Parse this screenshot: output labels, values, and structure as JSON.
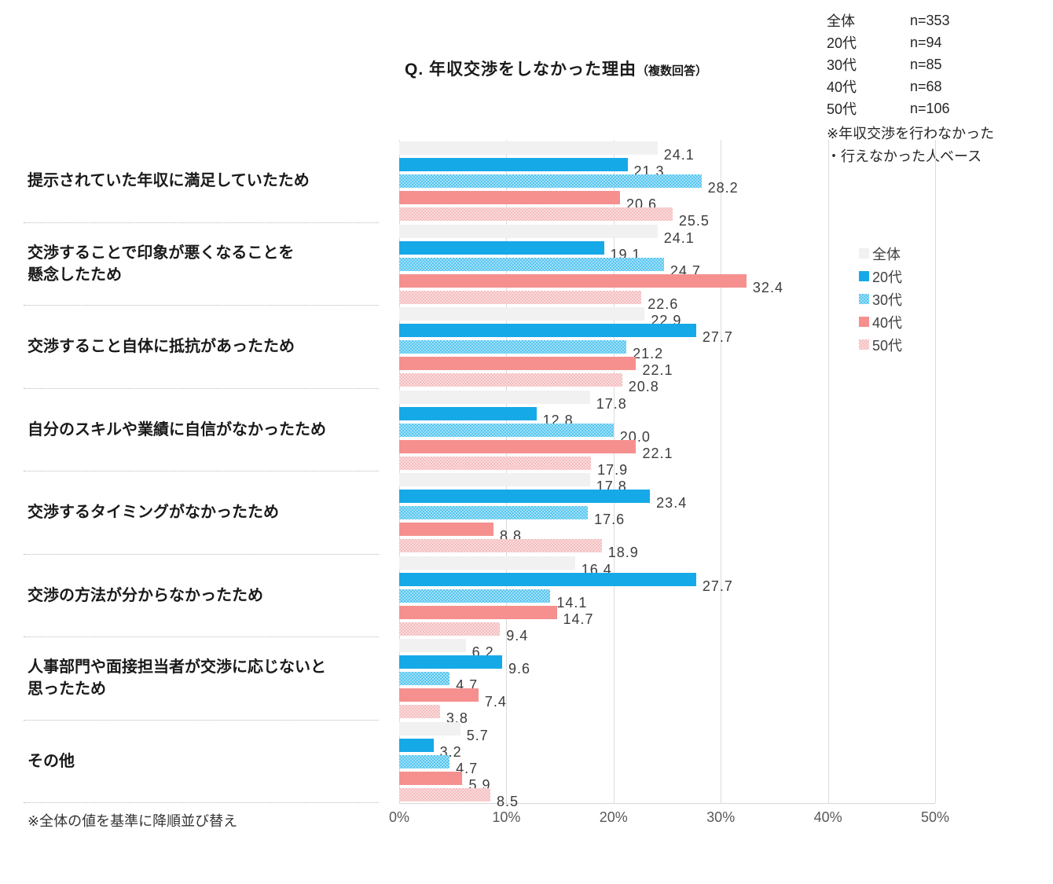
{
  "title": {
    "main": "Q. 年収交渉をしなかった理由",
    "sub": "（複数回答）"
  },
  "sample_sizes": {
    "rows": [
      {
        "label": "全体",
        "n": "n=353"
      },
      {
        "label": "20代",
        "n": "n=94"
      },
      {
        "label": "30代",
        "n": "n=85"
      },
      {
        "label": "40代",
        "n": "n=68"
      },
      {
        "label": "50代",
        "n": "n=106"
      }
    ]
  },
  "base_note": {
    "line1": "※年収交渉を行わなかった",
    "line2": "・行えなかった人ベース"
  },
  "footer_note": "※全体の値を基準に降順並び替え",
  "colors": {
    "zentai": "#f1f1f1",
    "s20": "#16a9e8",
    "s30": "#55c6f1",
    "s40": "#f5908f",
    "s50": "#f5bec0",
    "gridline": "#dcdcdc",
    "value_label": "#3c3c3c"
  },
  "chart_data": {
    "type": "bar",
    "orientation": "horizontal",
    "title": "Q. 年収交渉をしなかった理由（複数回答）",
    "xlim": [
      0,
      50
    ],
    "x_ticks": [
      "0%",
      "10%",
      "20%",
      "30%",
      "40%",
      "50%"
    ],
    "grid": true,
    "legend_position": "right",
    "value_labels": true,
    "categories": [
      "提示されていた年収に満足していたため",
      "交渉することで印象が悪くなることを\n懸念したため",
      "交渉すること自体に抵抗があったため",
      "自分のスキルや業績に自信がなかったため",
      "交渉するタイミングがなかったため",
      "交渉の方法が分からなかったため",
      "人事部門や面接担当者が交渉に応じないと\n思ったため",
      "その他"
    ],
    "series": [
      {
        "name": "全体",
        "color": "#f1f1f1",
        "pattern": false,
        "values": [
          24.1,
          24.1,
          22.9,
          17.8,
          17.8,
          16.4,
          6.2,
          5.7
        ]
      },
      {
        "name": "20代",
        "color": "#16a9e8",
        "pattern": false,
        "values": [
          21.3,
          19.1,
          27.7,
          12.8,
          23.4,
          27.7,
          9.6,
          3.2
        ]
      },
      {
        "name": "30代",
        "color": "#55c6f1",
        "pattern": true,
        "values": [
          28.2,
          24.7,
          21.2,
          20.0,
          17.6,
          14.1,
          4.7,
          4.7
        ]
      },
      {
        "name": "40代",
        "color": "#f5908f",
        "pattern": false,
        "values": [
          20.6,
          32.4,
          22.1,
          22.1,
          8.8,
          14.7,
          7.4,
          5.9
        ]
      },
      {
        "name": "50代",
        "color": "#f5bec0",
        "pattern": true,
        "values": [
          25.5,
          22.6,
          20.8,
          17.9,
          18.9,
          9.4,
          3.8,
          8.5
        ]
      }
    ]
  }
}
